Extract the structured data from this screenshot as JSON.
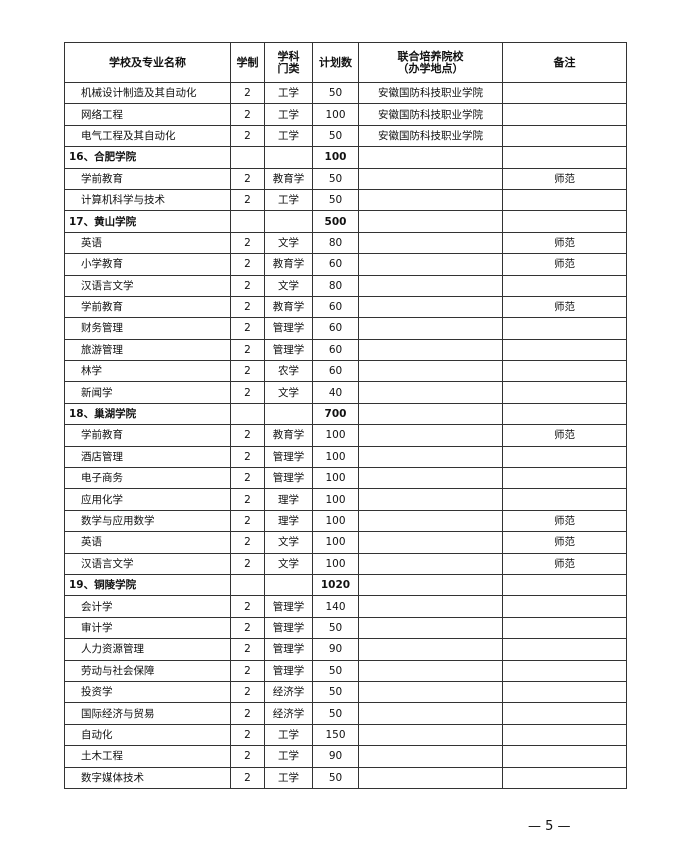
{
  "headers": [
    "学校及专业名称",
    "学制",
    "学科\n门类",
    "计划数",
    "联合培养院校\n（办学地点）",
    "备注"
  ],
  "rows": [
    {
      "name": "机械设计制造及其自动化",
      "years": "2",
      "category": "工学",
      "plan": "50",
      "partner": "安徽国防科技职业学院",
      "note": ""
    },
    {
      "name": "网络工程",
      "years": "2",
      "category": "工学",
      "plan": "100",
      "partner": "安徽国防科技职业学院",
      "note": ""
    },
    {
      "name": "电气工程及其自动化",
      "years": "2",
      "category": "工学",
      "plan": "50",
      "partner": "安徽国防科技职业学院",
      "note": ""
    },
    {
      "school": true,
      "name": "16、合肥学院",
      "years": "",
      "category": "",
      "plan": "100",
      "partner": "",
      "note": ""
    },
    {
      "name": "学前教育",
      "years": "2",
      "category": "教育学",
      "plan": "50",
      "partner": "",
      "note": "师范"
    },
    {
      "name": "计算机科学与技术",
      "years": "2",
      "category": "工学",
      "plan": "50",
      "partner": "",
      "note": ""
    },
    {
      "school": true,
      "name": "17、黄山学院",
      "years": "",
      "category": "",
      "plan": "500",
      "partner": "",
      "note": ""
    },
    {
      "name": "英语",
      "years": "2",
      "category": "文学",
      "plan": "80",
      "partner": "",
      "note": "师范"
    },
    {
      "name": "小学教育",
      "years": "2",
      "category": "教育学",
      "plan": "60",
      "partner": "",
      "note": "师范"
    },
    {
      "name": "汉语言文学",
      "years": "2",
      "category": "文学",
      "plan": "80",
      "partner": "",
      "note": ""
    },
    {
      "name": "学前教育",
      "years": "2",
      "category": "教育学",
      "plan": "60",
      "partner": "",
      "note": "师范"
    },
    {
      "name": "财务管理",
      "years": "2",
      "category": "管理学",
      "plan": "60",
      "partner": "",
      "note": ""
    },
    {
      "name": "旅游管理",
      "years": "2",
      "category": "管理学",
      "plan": "60",
      "partner": "",
      "note": ""
    },
    {
      "name": "林学",
      "years": "2",
      "category": "农学",
      "plan": "60",
      "partner": "",
      "note": ""
    },
    {
      "name": "新闻学",
      "years": "2",
      "category": "文学",
      "plan": "40",
      "partner": "",
      "note": ""
    },
    {
      "school": true,
      "name": "18、巢湖学院",
      "years": "",
      "category": "",
      "plan": "700",
      "partner": "",
      "note": ""
    },
    {
      "name": "学前教育",
      "years": "2",
      "category": "教育学",
      "plan": "100",
      "partner": "",
      "note": "师范"
    },
    {
      "name": "酒店管理",
      "years": "2",
      "category": "管理学",
      "plan": "100",
      "partner": "",
      "note": ""
    },
    {
      "name": "电子商务",
      "years": "2",
      "category": "管理学",
      "plan": "100",
      "partner": "",
      "note": ""
    },
    {
      "name": "应用化学",
      "years": "2",
      "category": "理学",
      "plan": "100",
      "partner": "",
      "note": ""
    },
    {
      "name": "数学与应用数学",
      "years": "2",
      "category": "理学",
      "plan": "100",
      "partner": "",
      "note": "师范"
    },
    {
      "name": "英语",
      "years": "2",
      "category": "文学",
      "plan": "100",
      "partner": "",
      "note": "师范"
    },
    {
      "name": "汉语言文学",
      "years": "2",
      "category": "文学",
      "plan": "100",
      "partner": "",
      "note": "师范"
    },
    {
      "school": true,
      "name": "19、铜陵学院",
      "years": "",
      "category": "",
      "plan": "1020",
      "partner": "",
      "note": ""
    },
    {
      "name": "会计学",
      "years": "2",
      "category": "管理学",
      "plan": "140",
      "partner": "",
      "note": ""
    },
    {
      "name": "审计学",
      "years": "2",
      "category": "管理学",
      "plan": "50",
      "partner": "",
      "note": ""
    },
    {
      "name": "人力资源管理",
      "years": "2",
      "category": "管理学",
      "plan": "90",
      "partner": "",
      "note": ""
    },
    {
      "name": "劳动与社会保障",
      "years": "2",
      "category": "管理学",
      "plan": "50",
      "partner": "",
      "note": ""
    },
    {
      "name": "投资学",
      "years": "2",
      "category": "经济学",
      "plan": "50",
      "partner": "",
      "note": ""
    },
    {
      "name": "国际经济与贸易",
      "years": "2",
      "category": "经济学",
      "plan": "50",
      "partner": "",
      "note": ""
    },
    {
      "name": "自动化",
      "years": "2",
      "category": "工学",
      "plan": "150",
      "partner": "",
      "note": ""
    },
    {
      "name": "土木工程",
      "years": "2",
      "category": "工学",
      "plan": "90",
      "partner": "",
      "note": ""
    },
    {
      "name": "数字媒体技术",
      "years": "2",
      "category": "工学",
      "plan": "50",
      "partner": "",
      "note": ""
    }
  ],
  "page_number": "— 5 —"
}
